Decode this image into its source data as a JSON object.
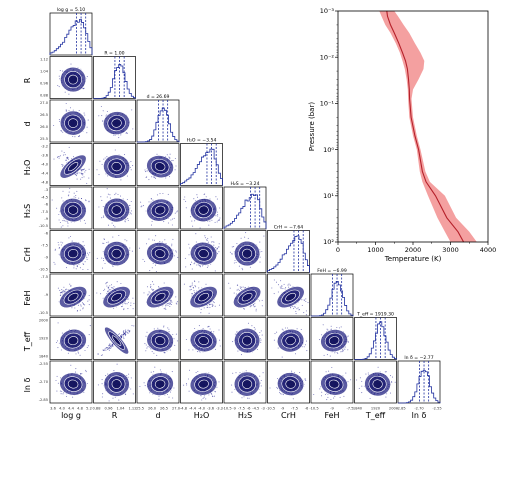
{
  "chart_data": [
    {
      "type": "scatter",
      "subtype": "corner-plot",
      "parameters": [
        {
          "key": "logg",
          "label": "log g",
          "latex_label": "log g",
          "title": "log g = 5.10",
          "ticks": [
            "3.6",
            "4.0",
            "4.4",
            "4.8",
            "5.2"
          ],
          "range": [
            3.5,
            5.4
          ],
          "peak": 5.1,
          "spread": 0.14,
          "skew": "left"
        },
        {
          "key": "R",
          "label": "R",
          "latex_label": "R",
          "title": "R = 1.00",
          "ticks": [
            "0.88",
            "0.96",
            "1.04",
            "1.12"
          ],
          "range": [
            0.84,
            1.16
          ],
          "peak": 1.0,
          "spread": 0.05,
          "skew": "none"
        },
        {
          "key": "d",
          "label": "d",
          "latex_label": "d",
          "title": "d = 26.69",
          "ticks": [
            "25.5",
            "26.0",
            "26.5",
            "27.0"
          ],
          "range": [
            25.2,
            27.3
          ],
          "peak": 26.69,
          "spread": 0.4,
          "skew": "none"
        },
        {
          "key": "H2O",
          "label": "H2O",
          "latex_label": "H₂O",
          "title": "H₂O = −3.54",
          "ticks": [
            "-4.8",
            "-4.4",
            "-4.0",
            "-3.6",
            "-3.2"
          ],
          "range": [
            -5.0,
            -3.0
          ],
          "peak": -3.54,
          "spread": 0.12,
          "skew": "left"
        },
        {
          "key": "H2S",
          "label": "H2S",
          "latex_label": "H₂S",
          "title": "H₂S = −3.24",
          "ticks": [
            "-10.5",
            "-9",
            "-7.5",
            "-6",
            "-4.5",
            "-3"
          ],
          "range": [
            -11,
            -2.5
          ],
          "peak": -3.24,
          "spread": 0.35,
          "skew": "left"
        },
        {
          "key": "CrH",
          "label": "CrH",
          "latex_label": "CrH",
          "title": "CrH = −7.64",
          "ticks": [
            "-10.5",
            "-9",
            "-7.5",
            "-6"
          ],
          "range": [
            -11,
            -5.5
          ],
          "peak": -7.64,
          "spread": 0.35,
          "skew": "left"
        },
        {
          "key": "FeH",
          "label": "FeH",
          "latex_label": "FeH",
          "title": "FeH = −6.99",
          "ticks": [
            "-10.5",
            "-9",
            "-7.5"
          ],
          "range": [
            -11,
            -6.2
          ],
          "peak": -6.99,
          "spread": 0.2,
          "skew": "none"
        },
        {
          "key": "Teff",
          "label": "Teff",
          "latex_label": "T_eff",
          "title": "T_eff = 1919.30",
          "ticks": [
            "1840",
            "1920",
            "2000"
          ],
          "range": [
            1800,
            2060
          ],
          "peak": 1919.3,
          "spread": 30,
          "skew": "none"
        },
        {
          "key": "lndelta",
          "label": "ln δ",
          "latex_label": "ln δ",
          "title": "ln δ = −2.77",
          "ticks": [
            "-2.85",
            "-2.70",
            "-2.55"
          ],
          "range": [
            -2.95,
            -2.45
          ],
          "peak": -2.77,
          "spread": 0.06,
          "skew": "none"
        }
      ],
      "row_axis_labels": [
        "R",
        "d",
        "H₂O",
        "H₂S",
        "CrH",
        "FeH",
        "T_eff",
        "ln δ"
      ],
      "point_color": "#1f1f8f",
      "contour_color": "#ffffff",
      "histogram_color": "#1f2f9f"
    },
    {
      "type": "line",
      "subtype": "pressure-temperature-profile",
      "xlabel": "Temperature (K)",
      "ylabel": "Pressure (bar)",
      "xlim": [
        0,
        4000
      ],
      "ylim": [
        0.001,
        100
      ],
      "yscale": "log",
      "y_inverted": true,
      "xticks": [
        "0",
        "1000",
        "2000",
        "3000",
        "4000"
      ],
      "yticks": [
        {
          "value": 0.001,
          "label": "10⁻³"
        },
        {
          "value": 0.01,
          "label": "10⁻²"
        },
        {
          "value": 0.1,
          "label": "10⁻¹"
        },
        {
          "value": 1,
          "label": "10⁰"
        },
        {
          "value": 10,
          "label": "10¹"
        },
        {
          "value": 100,
          "label": "10²"
        }
      ],
      "series": [
        {
          "values": [
            [
              1300,
              0.001
            ],
            [
              1320,
              0.0013
            ],
            [
              1400,
              0.002
            ],
            [
              1500,
              0.003
            ],
            [
              1620,
              0.005
            ],
            [
              1720,
              0.008
            ],
            [
              1800,
              0.012
            ],
            [
              1850,
              0.018
            ],
            [
              1880,
              0.03
            ],
            [
              1900,
              0.05
            ],
            [
              1910,
              0.08
            ],
            [
              1950,
              0.2
            ],
            [
              2050,
              0.5
            ],
            [
              2150,
              1
            ],
            [
              2250,
              3
            ],
            [
              2350,
              5
            ],
            [
              2600,
              10
            ],
            [
              2900,
              30
            ],
            [
              3200,
              60
            ],
            [
              3350,
              100
            ]
          ],
          "band_low": [
            [
              1100,
              0.001
            ],
            [
              1160,
              0.0013
            ],
            [
              1260,
              0.002
            ],
            [
              1400,
              0.003
            ],
            [
              1540,
              0.005
            ],
            [
              1650,
              0.008
            ],
            [
              1720,
              0.012
            ],
            [
              1780,
              0.018
            ],
            [
              1830,
              0.03
            ],
            [
              1860,
              0.05
            ],
            [
              1870,
              0.08
            ],
            [
              1900,
              0.2
            ],
            [
              2000,
              0.5
            ],
            [
              2100,
              1
            ],
            [
              2180,
              3
            ],
            [
              2250,
              5
            ],
            [
              2400,
              10
            ],
            [
              2650,
              30
            ],
            [
              2850,
              60
            ],
            [
              3000,
              100
            ]
          ],
          "band_high": [
            [
              1500,
              0.001
            ],
            [
              1600,
              0.0013
            ],
            [
              1750,
              0.002
            ],
            [
              1900,
              0.003
            ],
            [
              2050,
              0.005
            ],
            [
              2200,
              0.008
            ],
            [
              2300,
              0.012
            ],
            [
              2280,
              0.018
            ],
            [
              2150,
              0.03
            ],
            [
              2000,
              0.05
            ],
            [
              1960,
              0.08
            ],
            [
              2000,
              0.2
            ],
            [
              2100,
              0.5
            ],
            [
              2200,
              1
            ],
            [
              2330,
              3
            ],
            [
              2450,
              5
            ],
            [
              2850,
              10
            ],
            [
              3150,
              30
            ],
            [
              3500,
              60
            ],
            [
              3700,
              100
            ]
          ],
          "color": "#b5202a",
          "band_color": "#f08080"
        }
      ]
    }
  ]
}
